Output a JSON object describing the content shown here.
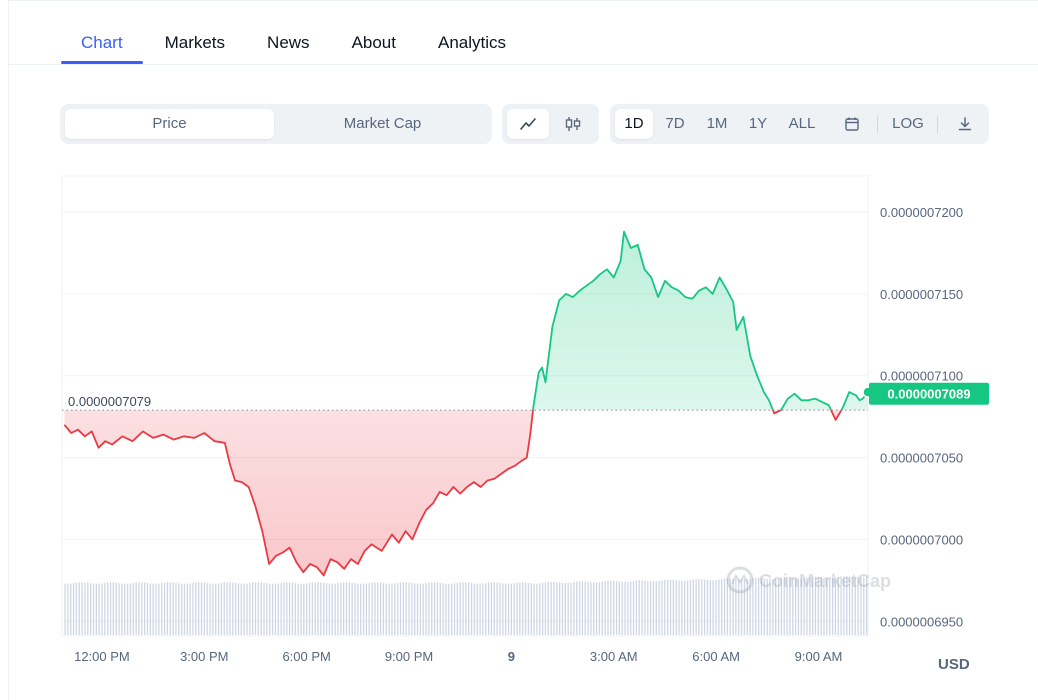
{
  "tabs": [
    {
      "label": "Chart",
      "active": true
    },
    {
      "label": "Markets",
      "active": false
    },
    {
      "label": "News",
      "active": false
    },
    {
      "label": "About",
      "active": false
    },
    {
      "label": "Analytics",
      "active": false
    }
  ],
  "toolbar": {
    "metric_options": [
      {
        "label": "Price",
        "active": true
      },
      {
        "label": "Market Cap",
        "active": false
      }
    ],
    "chart_types": [
      {
        "icon": "line-chart-icon",
        "active": true
      },
      {
        "icon": "candlestick-icon",
        "active": false
      }
    ],
    "ranges": [
      {
        "label": "1D",
        "active": true
      },
      {
        "label": "7D",
        "active": false
      },
      {
        "label": "1M",
        "active": false
      },
      {
        "label": "1Y",
        "active": false
      },
      {
        "label": "ALL",
        "active": false
      }
    ],
    "calendar_icon": "calendar-icon",
    "log_label": "LOG",
    "download_icon": "download-icon"
  },
  "currency_label": "USD",
  "colors": {
    "up": "#16c784",
    "down": "#ea3943",
    "accent": "#3861fb",
    "text_muted": "#58667e",
    "grid": "#eff2f5",
    "volume": "#cfd6e4"
  },
  "chart_data": {
    "type": "area",
    "x_ticks": [
      "12:00 PM",
      "3:00 PM",
      "6:00 PM",
      "9:00 PM",
      "9",
      "3:00 AM",
      "6:00 AM",
      "9:00 AM"
    ],
    "y_ticks": [
      "0.0000007200",
      "0.0000007150",
      "0.0000007100",
      "0.0000007050",
      "0.0000007000",
      "0.0000006950"
    ],
    "ylim": [
      6.941e-07,
      7.222e-07
    ],
    "xlim_hours": [
      10.83,
      34.45
    ],
    "reference_price": 7.079e-07,
    "reference_label": "0.0000007079",
    "current_price": 7.089e-07,
    "current_price_label": "0.0000007089",
    "watermark": "CoinMarketCap",
    "series": [
      {
        "values": [
          [
            10.9,
            7070
          ],
          [
            11.1,
            7065
          ],
          [
            11.3,
            7067
          ],
          [
            11.5,
            7063
          ],
          [
            11.7,
            7066
          ],
          [
            11.9,
            7056
          ],
          [
            12.1,
            7060
          ],
          [
            12.3,
            7058
          ],
          [
            12.6,
            7063
          ],
          [
            12.9,
            7060
          ],
          [
            13.2,
            7066
          ],
          [
            13.5,
            7062
          ],
          [
            13.8,
            7064
          ],
          [
            14.1,
            7061
          ],
          [
            14.4,
            7063
          ],
          [
            14.7,
            7062
          ],
          [
            15.0,
            7065
          ],
          [
            15.3,
            7060
          ],
          [
            15.6,
            7059
          ],
          [
            15.75,
            7046
          ],
          [
            15.9,
            7036
          ],
          [
            16.1,
            7035
          ],
          [
            16.3,
            7032
          ],
          [
            16.5,
            7020
          ],
          [
            16.7,
            7005
          ],
          [
            16.9,
            6985
          ],
          [
            17.1,
            6990
          ],
          [
            17.3,
            6992
          ],
          [
            17.5,
            6995
          ],
          [
            17.7,
            6986
          ],
          [
            17.9,
            6980
          ],
          [
            18.1,
            6985
          ],
          [
            18.3,
            6983
          ],
          [
            18.5,
            6978
          ],
          [
            18.7,
            6988
          ],
          [
            18.9,
            6986
          ],
          [
            19.1,
            6982
          ],
          [
            19.3,
            6988
          ],
          [
            19.5,
            6985
          ],
          [
            19.7,
            6993
          ],
          [
            19.9,
            6997
          ],
          [
            20.2,
            6993
          ],
          [
            20.5,
            7003
          ],
          [
            20.7,
            6998
          ],
          [
            20.9,
            7005
          ],
          [
            21.1,
            7000
          ],
          [
            21.3,
            7010
          ],
          [
            21.5,
            7018
          ],
          [
            21.7,
            7022
          ],
          [
            21.9,
            7029
          ],
          [
            22.1,
            7027
          ],
          [
            22.3,
            7032
          ],
          [
            22.5,
            7028
          ],
          [
            22.7,
            7032
          ],
          [
            22.9,
            7035
          ],
          [
            23.1,
            7032
          ],
          [
            23.3,
            7036
          ],
          [
            23.5,
            7037
          ],
          [
            23.7,
            7040
          ],
          [
            23.9,
            7043
          ],
          [
            24.1,
            7045
          ],
          [
            24.3,
            7048
          ],
          [
            24.45,
            7050
          ],
          [
            24.55,
            7064
          ],
          [
            24.65,
            7082
          ],
          [
            24.8,
            7102
          ],
          [
            24.9,
            7105
          ],
          [
            25.0,
            7096
          ],
          [
            25.2,
            7130
          ],
          [
            25.4,
            7146
          ],
          [
            25.6,
            7150
          ],
          [
            25.8,
            7148
          ],
          [
            26.0,
            7152
          ],
          [
            26.2,
            7155
          ],
          [
            26.4,
            7158
          ],
          [
            26.6,
            7162
          ],
          [
            26.8,
            7165
          ],
          [
            27.0,
            7160
          ],
          [
            27.2,
            7170
          ],
          [
            27.3,
            7188
          ],
          [
            27.5,
            7178
          ],
          [
            27.7,
            7180
          ],
          [
            27.9,
            7165
          ],
          [
            28.1,
            7160
          ],
          [
            28.3,
            7148
          ],
          [
            28.5,
            7158
          ],
          [
            28.7,
            7154
          ],
          [
            28.9,
            7152
          ],
          [
            29.1,
            7148
          ],
          [
            29.3,
            7147
          ],
          [
            29.5,
            7152
          ],
          [
            29.7,
            7154
          ],
          [
            29.9,
            7150
          ],
          [
            30.1,
            7160
          ],
          [
            30.3,
            7153
          ],
          [
            30.5,
            7145
          ],
          [
            30.6,
            7128
          ],
          [
            30.8,
            7136
          ],
          [
            31.0,
            7112
          ],
          [
            31.2,
            7100
          ],
          [
            31.4,
            7090
          ],
          [
            31.55,
            7085
          ],
          [
            31.7,
            7077
          ],
          [
            31.9,
            7079
          ],
          [
            32.1,
            7086
          ],
          [
            32.3,
            7089
          ],
          [
            32.5,
            7085
          ],
          [
            32.7,
            7085
          ],
          [
            32.9,
            7086
          ],
          [
            33.1,
            7084
          ],
          [
            33.3,
            7082
          ],
          [
            33.5,
            7073
          ],
          [
            33.7,
            7080
          ],
          [
            33.9,
            7090
          ],
          [
            34.1,
            7088
          ],
          [
            34.2,
            7085
          ],
          [
            34.3,
            7086
          ],
          [
            34.45,
            7090
          ]
        ]
      }
    ],
    "y_scale_note": "series y values in units of 1e-10"
  }
}
